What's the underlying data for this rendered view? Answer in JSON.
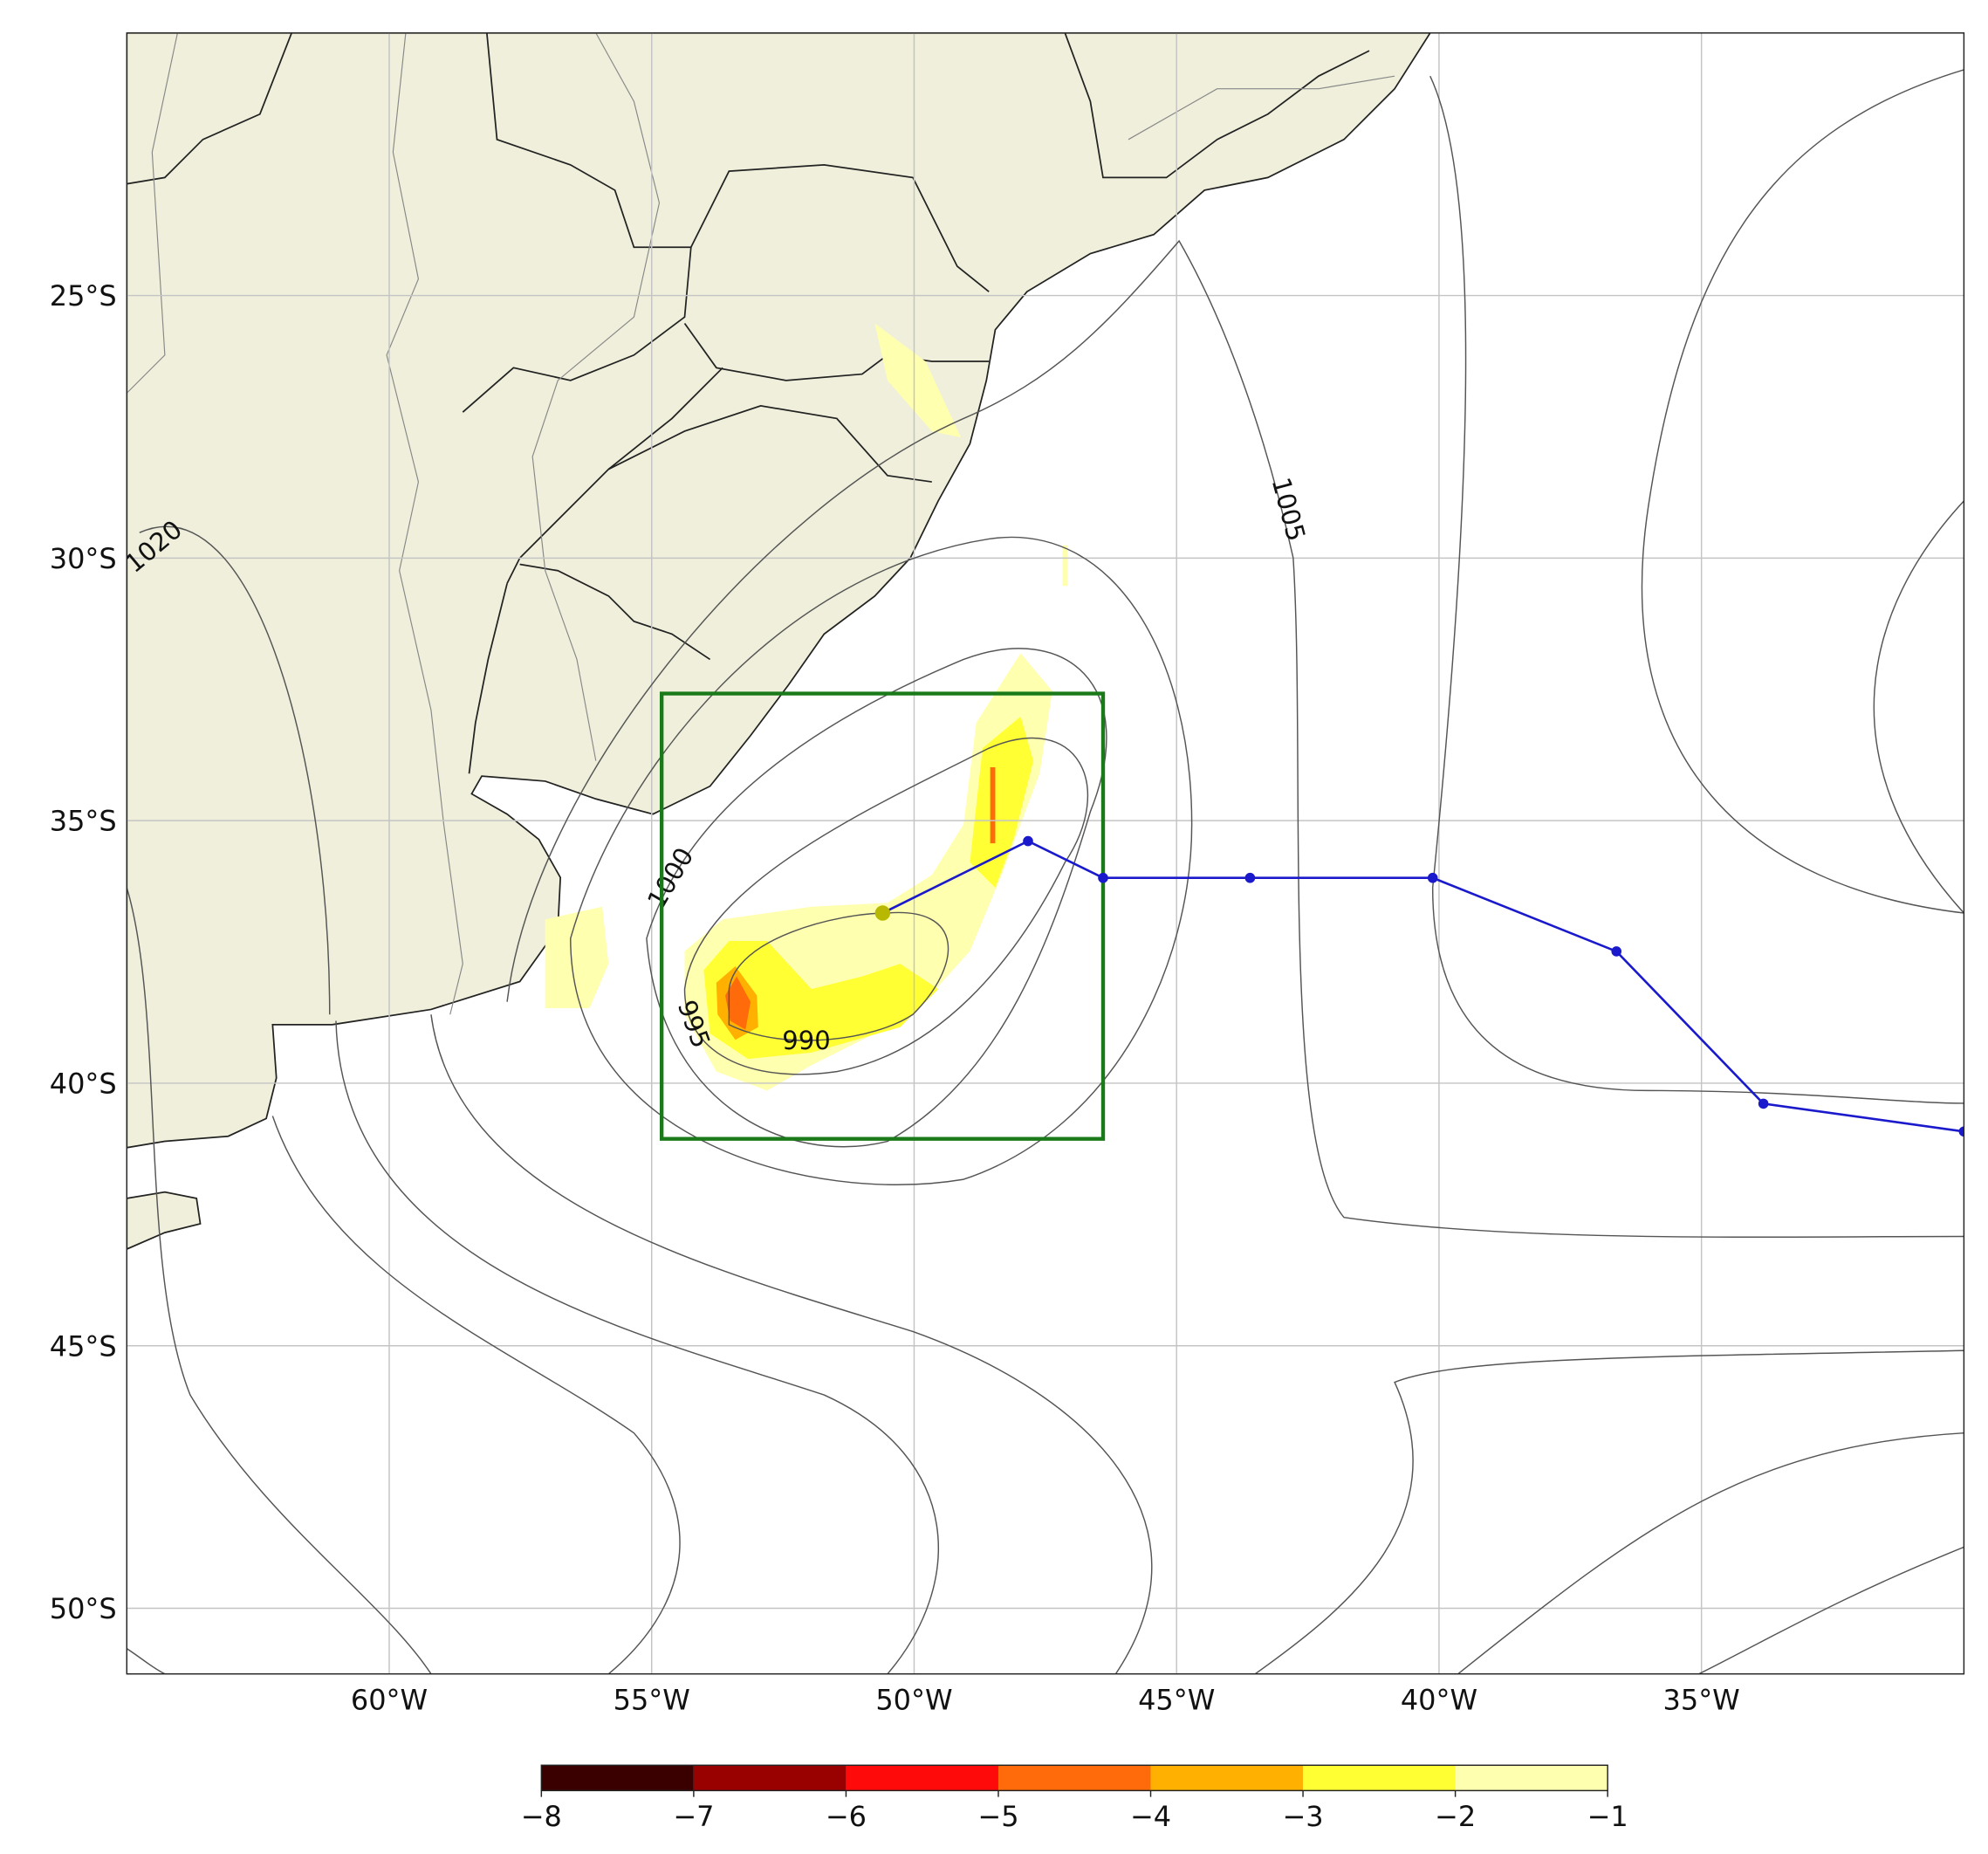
{
  "map": {
    "xlim": [
      -65,
      -30
    ],
    "ylim": [
      -51.25,
      -20
    ],
    "lon_ticks": [
      {
        "value": -60,
        "label": "60°W"
      },
      {
        "value": -55,
        "label": "55°W"
      },
      {
        "value": -50,
        "label": "50°W"
      },
      {
        "value": -45,
        "label": "45°W"
      },
      {
        "value": -40,
        "label": "40°W"
      },
      {
        "value": -35,
        "label": "35°W"
      }
    ],
    "lat_ticks": [
      {
        "value": -25,
        "label": "25°S"
      },
      {
        "value": -30,
        "label": "30°S"
      },
      {
        "value": -35,
        "label": "35°S"
      },
      {
        "value": -40,
        "label": "40°S"
      },
      {
        "value": -45,
        "label": "45°S"
      },
      {
        "value": -50,
        "label": "50°S"
      }
    ],
    "contour_labels": [
      "1020",
      "1005",
      "1000",
      "995",
      "990"
    ],
    "track": {
      "color": "#1a1acc",
      "start_color": "#b8b800",
      "lon": [
        -50.6,
        -47.83,
        -46.4,
        -43.6,
        -40.12,
        -36.62,
        -33.82,
        -30
      ],
      "lat": [
        -36.76,
        -35.39,
        -36.09,
        -36.09,
        -36.09,
        -37.49,
        -40.39,
        -40.92
      ]
    },
    "box": {
      "color": "#1a7a1a",
      "lon": [
        -54.81,
        -46.4
      ],
      "lat": [
        -41.06,
        -32.58
      ]
    },
    "colorbar": {
      "ticks": [
        {
          "value": -8,
          "label": "−8"
        },
        {
          "value": -7,
          "label": "−7"
        },
        {
          "value": -6,
          "label": "−6"
        },
        {
          "value": -5,
          "label": "−5"
        },
        {
          "value": -4,
          "label": "−4"
        },
        {
          "value": -3,
          "label": "−3"
        },
        {
          "value": -2,
          "label": "−2"
        },
        {
          "value": -1,
          "label": "−1"
        }
      ],
      "colors": [
        "#3a0000",
        "#990000",
        "#ff0a0a",
        "#ff6a0a",
        "#ffb000",
        "#ffff33",
        "#ffffb0"
      ]
    }
  }
}
